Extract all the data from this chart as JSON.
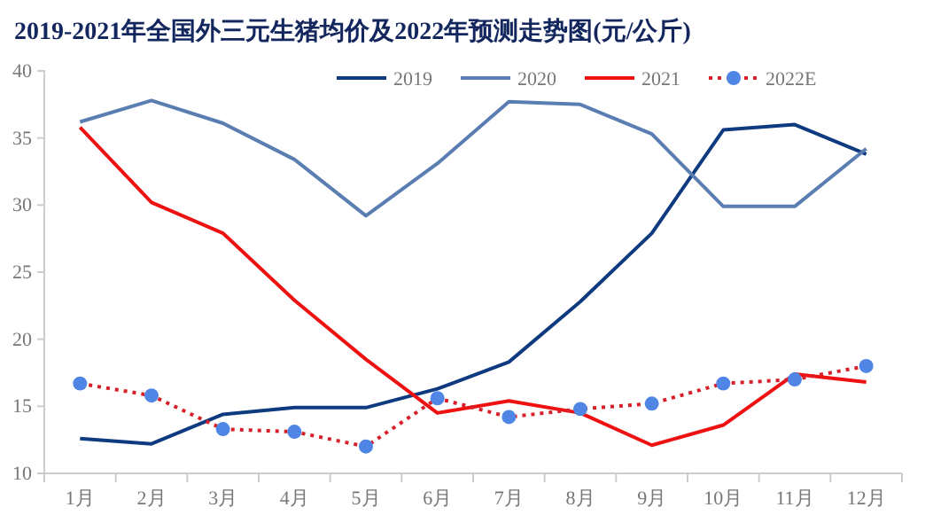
{
  "chart_data": {
    "type": "line",
    "title": "2019-2021年全国外三元生猪均价及2022年预测走势图(元/公斤)",
    "categories": [
      "1月",
      "2月",
      "3月",
      "4月",
      "5月",
      "6月",
      "7月",
      "8月",
      "9月",
      "10月",
      "11月",
      "12月"
    ],
    "ylim": [
      10,
      40
    ],
    "yticks": [
      10,
      15,
      20,
      25,
      30,
      35,
      40
    ],
    "grid": false,
    "legend": "top right",
    "marker": "none",
    "line_style": "solid",
    "series": [
      {
        "name": "2019",
        "color": "#0e3a80",
        "values": [
          12.6,
          12.2,
          14.4,
          14.9,
          14.9,
          16.3,
          18.3,
          22.8,
          27.9,
          35.6,
          36.0,
          33.8
        ]
      },
      {
        "name": "2020",
        "color": "#5a7db2",
        "values": [
          36.2,
          37.8,
          36.1,
          33.4,
          29.2,
          33.1,
          37.7,
          37.5,
          35.3,
          29.9,
          29.9,
          34.2
        ]
      },
      {
        "name": "2021",
        "color": "#ee1111",
        "values": [
          35.8,
          30.2,
          27.9,
          22.9,
          18.5,
          14.5,
          15.4,
          14.5,
          12.1,
          13.6,
          17.4,
          16.8
        ]
      },
      {
        "name": "2022E",
        "color": "#d8202a",
        "line_style": "dotted",
        "marker": "circle",
        "colors": [
          "#4f86e6",
          "#4f86e6",
          "#4f86e6",
          "#4f86e6",
          "#4f86e6",
          "#4f86e6",
          "#4f86e6",
          "#4f86e6",
          "#4f86e6",
          "#4f86e6",
          "#4f86e6",
          "#4f86e6"
        ],
        "values": [
          16.7,
          15.8,
          13.3,
          13.1,
          12.0,
          15.6,
          14.2,
          14.8,
          15.2,
          16.7,
          17.0,
          18.0
        ]
      }
    ]
  }
}
